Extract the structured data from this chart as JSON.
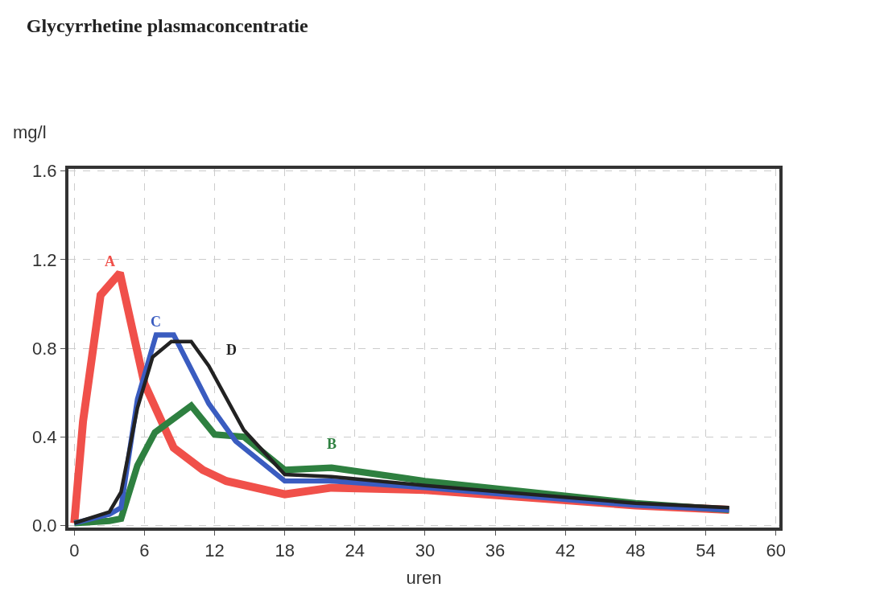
{
  "chart_data": {
    "type": "line",
    "title": "Glycyrrhetine plasmaconcentratie",
    "ylabel": "mg/l",
    "xlabel": "uren",
    "xlim": [
      -0.5,
      60.3
    ],
    "xticks": [
      0,
      6,
      12,
      18,
      24,
      30,
      36,
      42,
      48,
      54,
      60
    ],
    "ylim": [
      -0.01,
      1.61
    ],
    "yticks": [
      {
        "value": 0,
        "label": "0.0"
      },
      {
        "value": 0.4,
        "label": "0.4"
      },
      {
        "value": 0.8,
        "label": "0.8"
      },
      {
        "value": 1.2,
        "label": "1.2"
      },
      {
        "value": 1.6,
        "label": "1.6"
      }
    ],
    "grid": true,
    "legend": false,
    "marker": "none",
    "line_style": "solid",
    "series": [
      {
        "name": "A",
        "color": "#f0504a",
        "x": [
          0,
          0.75,
          2.25,
          3.9,
          6,
          8.5,
          11,
          13,
          18,
          22,
          30,
          48,
          56
        ],
        "values": [
          0.01,
          0.47,
          1.04,
          1.14,
          0.64,
          0.35,
          0.25,
          0.2,
          0.14,
          0.17,
          0.16,
          0.09,
          0.07
        ]
      },
      {
        "name": "B",
        "color": "#2e8040",
        "x": [
          0,
          3,
          4,
          5.4,
          6.9,
          10,
          12,
          14.5,
          18,
          22,
          30,
          48,
          56
        ],
        "values": [
          0.01,
          0.02,
          0.03,
          0.27,
          0.42,
          0.54,
          0.41,
          0.4,
          0.25,
          0.26,
          0.2,
          0.1,
          0.07
        ]
      },
      {
        "name": "C",
        "color": "#3a5cc0",
        "x": [
          0,
          3,
          4,
          5.4,
          7,
          8.5,
          11.5,
          13.8,
          18,
          22,
          30,
          48,
          56
        ],
        "values": [
          0.01,
          0.05,
          0.08,
          0.57,
          0.86,
          0.86,
          0.55,
          0.38,
          0.2,
          0.2,
          0.17,
          0.09,
          0.07
        ]
      },
      {
        "name": "D",
        "color": "#222222",
        "x": [
          0,
          3,
          4,
          5.4,
          6.7,
          8.3,
          10,
          11.5,
          14.5,
          18,
          22,
          30,
          48,
          56
        ],
        "values": [
          0.01,
          0.06,
          0.15,
          0.53,
          0.76,
          0.83,
          0.83,
          0.72,
          0.43,
          0.23,
          0.22,
          0.18,
          0.1,
          0.08
        ]
      }
    ]
  }
}
